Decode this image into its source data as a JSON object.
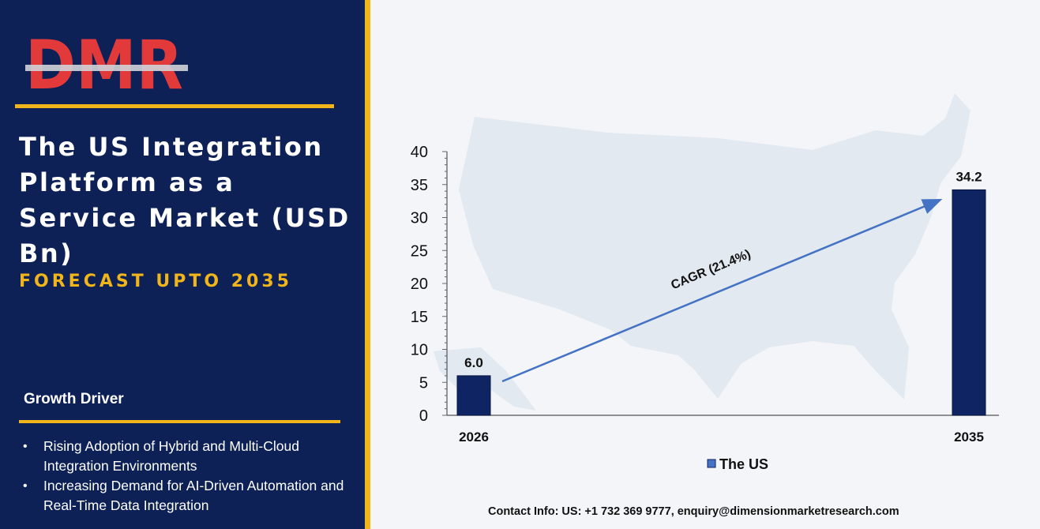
{
  "brand": {
    "logo_text": "DMR",
    "colors": {
      "navy": "#0d2157",
      "gold": "#f0b51a",
      "logo_red": "#e23a3a",
      "logo_grey": "#cfd3d8",
      "bar": "#0f2462",
      "trend": "#4472c4"
    }
  },
  "left_panel": {
    "title": "The US Integration Platform as a Service Market (USD Bn)",
    "subtitle": "FORECAST UPTO 2035",
    "growth_heading": "Growth Driver",
    "drivers": [
      "Rising Adoption of Hybrid and Multi-Cloud Integration Environments",
      "Increasing Demand for AI-Driven Automation and Real-Time Data Integration"
    ]
  },
  "background": {
    "icon": "us-map-icon"
  },
  "chart_data": {
    "type": "bar",
    "categories": [
      "2026",
      "2035"
    ],
    "series": [
      {
        "name": "The US",
        "values": [
          6.0,
          34.2
        ]
      }
    ],
    "data_labels": [
      "6.0",
      "34.2"
    ],
    "yticks": [
      "0",
      "5",
      "10",
      "15",
      "20",
      "25",
      "30",
      "35",
      "40"
    ],
    "ylim": [
      0,
      40
    ],
    "annotation": "CAGR (21.4%)",
    "legend_position": "bottom",
    "grid": false
  },
  "footer": {
    "contact": "Contact Info: US: +1 732 369 9777, enquiry@dimensionmarketresearch.com"
  }
}
